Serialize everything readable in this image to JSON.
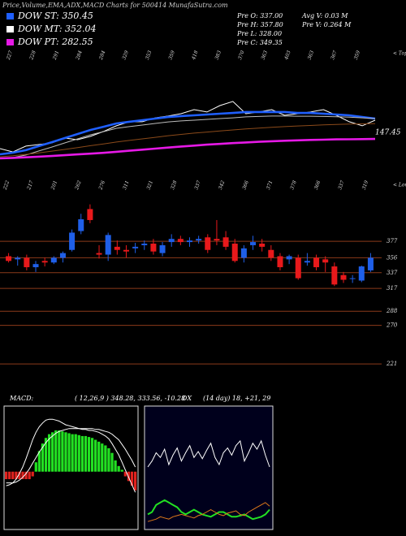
{
  "header": {
    "title": "Price,Volume,EMA,ADX,MACD Charts for 500414  MunafaSutra.com",
    "legend": [
      {
        "label": "DOW ST: 350.45",
        "color": "#1f5fff"
      },
      {
        "label": "DOW MT: 352.04",
        "color": "#ffffff"
      },
      {
        "label": "DOW PT: 282.55",
        "color": "#e619e6"
      }
    ],
    "stats": [
      "Pre  O: 337.00",
      "Pre  H: 357.80",
      "Pre  L: 328.00",
      "Pre  C: 349.35",
      "Avg V: 0.03 M",
      "Pre  V: 0.264 M"
    ]
  },
  "chart_data": [
    {
      "type": "line",
      "tops_label": "< Tops",
      "tops": [
        227,
        228,
        291,
        284,
        284,
        329,
        353,
        359,
        418,
        383,
        370,
        363,
        403,
        363,
        367,
        359
      ],
      "ylim": [
        0,
        740
      ],
      "series": [
        {
          "color": "#ffffff",
          "values": [
            74,
            49,
            93,
            105,
            117,
            154,
            142,
            167,
            204,
            247,
            278,
            278,
            308,
            321,
            339,
            370,
            352,
            401,
            432,
            339,
            352,
            370,
            327,
            339,
            352,
            370,
            327,
            278,
            247,
            290
          ]
        },
        {
          "color": "#1f5fff",
          "values": [
            31,
            43,
            62,
            93,
            123,
            154,
            185,
            216,
            240,
            265,
            278,
            290,
            302,
            314,
            321,
            327,
            333,
            339,
            345,
            352,
            352,
            352,
            352,
            345,
            345,
            339,
            333,
            327,
            314,
            302
          ]
        },
        {
          "color": "#bbbbbb",
          "values": [
            0,
            6,
            25,
            56,
            86,
            117,
            148,
            179,
            203,
            228,
            241,
            253,
            265,
            277,
            284,
            290,
            296,
            302,
            308,
            315,
            318,
            321,
            321,
            320,
            320,
            318,
            316,
            313,
            308,
            302
          ]
        },
        {
          "color": "#8b4a1a",
          "values": [
            12,
            20,
            30,
            42,
            55,
            68,
            82,
            96,
            110,
            124,
            136,
            148,
            160,
            172,
            182,
            192,
            200,
            208,
            216,
            224,
            230,
            236,
            241,
            246,
            250,
            254,
            257,
            260,
            262,
            264
          ]
        },
        {
          "color": "#e619e6",
          "values": [
            0,
            4,
            8,
            13,
            18,
            24,
            30,
            36,
            42,
            50,
            58,
            66,
            74,
            82,
            90,
            97,
            104,
            110,
            116,
            121,
            126,
            130,
            134,
            137,
            140,
            142,
            144,
            145,
            146,
            147.45
          ]
        }
      ]
    },
    {
      "type": "candlestick",
      "lows_label": "< Lows",
      "lows": [
        222,
        217,
        201,
        262,
        276,
        311,
        321,
        328,
        337,
        342,
        366,
        371,
        378,
        366,
        337,
        319
      ],
      "open": [
        358,
        354,
        356,
        344,
        352,
        350,
        356,
        366,
        390,
        418,
        362,
        360,
        370,
        366,
        368,
        372,
        374,
        362,
        376,
        380,
        376,
        378,
        382,
        380,
        382,
        374,
        356,
        372,
        374,
        366,
        358,
        354,
        356,
        350,
        356,
        354,
        345,
        334,
        330,
        327,
        340
      ],
      "high": [
        362,
        358,
        360,
        352,
        356,
        358,
        364,
        392,
        412,
        424,
        372,
        388,
        378,
        372,
        375,
        378,
        380,
        376,
        386,
        384,
        382,
        384,
        386,
        404,
        390,
        380,
        372,
        384,
        380,
        372,
        362,
        360,
        360,
        362,
        360,
        358,
        350,
        338,
        334,
        346,
        362
      ],
      "low": [
        350,
        346,
        340,
        338,
        345,
        348,
        350,
        364,
        386,
        400,
        355,
        352,
        360,
        356,
        362,
        366,
        360,
        358,
        370,
        372,
        370,
        374,
        362,
        372,
        366,
        350,
        350,
        366,
        364,
        352,
        340,
        348,
        328,
        346,
        340,
        338,
        320,
        324,
        324,
        325,
        338
      ],
      "close": [
        352,
        356,
        344,
        348,
        350,
        356,
        362,
        388,
        405,
        404,
        360,
        385,
        366,
        364,
        370,
        374,
        364,
        372,
        380,
        376,
        378,
        380,
        366,
        378,
        370,
        352,
        368,
        376,
        370,
        356,
        344,
        358,
        330,
        352,
        344,
        350,
        322,
        328,
        330,
        345,
        356
      ],
      "up_color": "#1f5fe8",
      "down_color": "#e8191b",
      "grid_color": "#8b3a1a",
      "ylim": [
        188,
        436
      ],
      "yticks": [
        377,
        356,
        337,
        317,
        288,
        270,
        221
      ]
    },
    {
      "type": "macd",
      "title": "MACD:",
      "subtitle": "( 12,26,9 ) 348.28, 333.56, -10.28",
      "histogram": [
        -8,
        -8,
        -8,
        -8,
        -8,
        -8,
        -8,
        -8,
        -5,
        10,
        22,
        30,
        36,
        40,
        42,
        44,
        44,
        43,
        42,
        41,
        40,
        40,
        39,
        38,
        38,
        37,
        36,
        34,
        32,
        30,
        28,
        25,
        20,
        12,
        6,
        2,
        -5,
        -10,
        -15,
        -20
      ],
      "macd": [
        -15,
        -14,
        -12,
        -8,
        -2,
        5,
        14,
        24,
        34,
        42,
        48,
        52,
        55,
        56,
        56,
        55,
        54,
        52,
        50,
        49,
        48,
        47,
        46,
        45,
        45,
        44,
        44,
        43,
        42,
        40,
        38,
        35,
        30,
        24,
        18,
        10,
        2,
        -6,
        -14,
        -22
      ],
      "signal": [
        -12,
        -12,
        -12,
        -11,
        -9,
        -6,
        -2,
        3,
        9,
        15,
        21,
        26,
        31,
        35,
        38,
        41,
        43,
        44,
        45,
        46,
        46,
        46,
        46,
        46,
        46,
        46,
        46,
        45,
        45,
        44,
        43,
        42,
        40,
        37,
        34,
        29,
        24,
        18,
        12,
        5
      ],
      "up_color": "#22e022",
      "down_color": "#e0221e",
      "line_color": "#ffffff",
      "ylim": [
        -60,
        70
      ]
    },
    {
      "type": "adx",
      "title": "DX",
      "subtitle": "(14 day) 18, +21, 29",
      "ylim": [
        0,
        100
      ],
      "series": [
        {
          "color": "#ffffff",
          "values": [
            50,
            55,
            62,
            58,
            65,
            52,
            60,
            66,
            55,
            62,
            68,
            58,
            63,
            57,
            64,
            70,
            58,
            52,
            62,
            66,
            60,
            68,
            72,
            55,
            62,
            70,
            65,
            72,
            60,
            50
          ]
        },
        {
          "color": "#22e022",
          "values": [
            10,
            12,
            18,
            20,
            22,
            20,
            18,
            16,
            12,
            10,
            12,
            14,
            12,
            10,
            9,
            8,
            10,
            12,
            12,
            10,
            8,
            8,
            9,
            10,
            8,
            6,
            7,
            8,
            10,
            14
          ]
        },
        {
          "color": "#e07a1a",
          "values": [
            4,
            5,
            6,
            8,
            7,
            6,
            8,
            9,
            10,
            9,
            8,
            7,
            9,
            10,
            12,
            14,
            12,
            10,
            9,
            11,
            12,
            13,
            10,
            9,
            12,
            14,
            16,
            18,
            20,
            17
          ]
        }
      ]
    }
  ]
}
